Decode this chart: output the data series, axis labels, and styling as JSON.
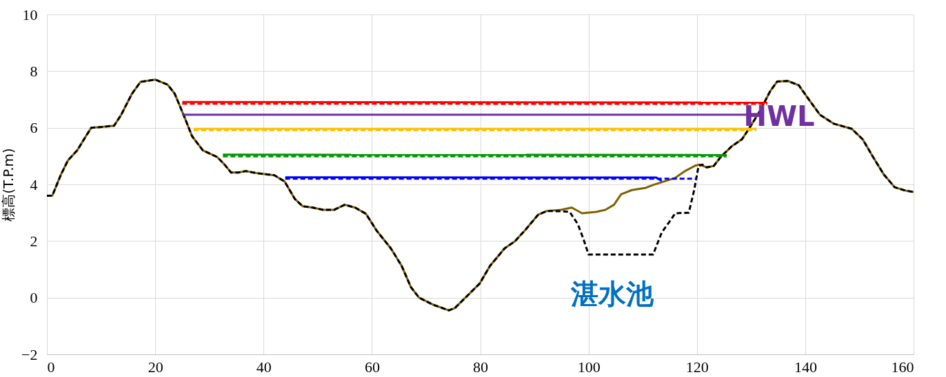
{
  "chart_data": {
    "type": "line",
    "ylabel": "標高(T.P.m)",
    "xlim": [
      0,
      160
    ],
    "ylim": [
      -2,
      10
    ],
    "xticks": [
      0,
      20,
      40,
      60,
      80,
      100,
      120,
      140,
      160
    ],
    "yticks": [
      -2,
      0,
      2,
      4,
      6,
      8,
      10
    ],
    "grid": true,
    "marker": "none",
    "series": [
      {
        "color": "#7f6000",
        "line_style": "solid",
        "x": [
          0,
          1,
          2.6,
          3.9,
          5.6,
          7.2,
          8.2,
          9.8,
          12.4,
          13.7,
          15.7,
          17.3,
          20,
          22.3,
          23.6,
          25.5,
          26.8,
          28.8,
          31.4,
          32.7,
          34,
          35.4,
          36.7,
          38.6,
          42,
          43.9,
          45.8,
          47.2,
          49.1,
          51,
          53,
          55,
          56.9,
          58.9,
          60.9,
          63.5,
          65.5,
          67.2,
          68.7,
          71.3,
          74.2,
          75.3,
          77.9,
          79.9,
          81.8,
          84.5,
          86.4,
          88.4,
          90.7,
          92.3,
          94.9,
          96.9,
          98.8,
          101.4,
          103.1,
          104.7,
          106,
          108,
          110.6,
          111.9,
          113.9,
          115.9,
          117.8,
          119.8,
          120.5,
          121.8,
          123.1,
          124.4,
          126.4,
          128.3,
          129.6,
          131.6,
          133.5,
          134.8,
          136.8,
          138.8,
          140.8,
          142.7,
          145.3,
          148.6,
          150.6,
          152.5,
          154.5,
          156.5,
          158.5,
          160
        ],
        "values": [
          3.6,
          3.6,
          4.35,
          4.85,
          5.2,
          5.7,
          6.0,
          6.02,
          6.07,
          6.45,
          7.2,
          7.62,
          7.7,
          7.52,
          7.2,
          6.33,
          5.7,
          5.2,
          4.97,
          4.72,
          4.42,
          4.42,
          4.47,
          4.4,
          4.32,
          4.1,
          3.48,
          3.23,
          3.18,
          3.1,
          3.1,
          3.28,
          3.18,
          2.96,
          2.36,
          1.74,
          1.12,
          0.37,
          0,
          -0.25,
          -0.45,
          -0.37,
          0.12,
          0.5,
          1.12,
          1.74,
          1.99,
          2.41,
          2.93,
          3.06,
          3.1,
          3.18,
          2.98,
          3.03,
          3.1,
          3.28,
          3.65,
          3.8,
          3.88,
          3.98,
          4.1,
          4.22,
          4.47,
          4.67,
          4.7,
          4.6,
          4.65,
          4.97,
          5.34,
          5.59,
          5.96,
          6.58,
          7.28,
          7.63,
          7.65,
          7.5,
          6.96,
          6.46,
          6.14,
          5.96,
          5.59,
          4.97,
          4.35,
          3.9,
          3.78,
          3.73
        ]
      },
      {
        "color": "#000000",
        "line_style": "dashed",
        "x": [
          0,
          1,
          2.6,
          3.9,
          5.6,
          7.2,
          8.2,
          9.8,
          12.4,
          13.7,
          15.7,
          17.3,
          20,
          22.3,
          23.6,
          25.5,
          26.8,
          28.8,
          31.4,
          32.7,
          34,
          35.4,
          36.7,
          38.6,
          42,
          43.9,
          45.8,
          47.2,
          49.1,
          51,
          53,
          55,
          56.9,
          58.9,
          60.9,
          63.5,
          65.5,
          67.2,
          68.7,
          71.3,
          74.2,
          75.3,
          77.9,
          79.9,
          81.8,
          84.5,
          86.4,
          88.4,
          90.7,
          92.3,
          94.9,
          96.5,
          98,
          99,
          100,
          104,
          108,
          111.9,
          113.5,
          115,
          116,
          118.5,
          119.5,
          120.3,
          121,
          121.8,
          123.1,
          124.4,
          126.4,
          128.3,
          129.6,
          131.6,
          133.5,
          134.8,
          136.8,
          138.8,
          140.8,
          142.7,
          145.3,
          148.6,
          150.6,
          152.5,
          154.5,
          156.5,
          158.5,
          160
        ],
        "values": [
          3.6,
          3.6,
          4.35,
          4.85,
          5.2,
          5.7,
          6.0,
          6.02,
          6.07,
          6.45,
          7.2,
          7.62,
          7.7,
          7.52,
          7.2,
          6.33,
          5.7,
          5.2,
          4.97,
          4.72,
          4.42,
          4.42,
          4.47,
          4.4,
          4.32,
          4.1,
          3.48,
          3.23,
          3.18,
          3.1,
          3.1,
          3.28,
          3.18,
          2.96,
          2.36,
          1.74,
          1.12,
          0.37,
          0,
          -0.25,
          -0.45,
          -0.37,
          0.12,
          0.5,
          1.12,
          1.74,
          1.99,
          2.41,
          2.93,
          3.06,
          3.05,
          3.03,
          2.6,
          2.1,
          1.52,
          1.52,
          1.52,
          1.52,
          2.3,
          2.7,
          2.98,
          3.0,
          3.8,
          4.65,
          4.7,
          4.6,
          4.65,
          4.97,
          5.34,
          5.59,
          5.96,
          6.58,
          7.28,
          7.63,
          7.65,
          7.5,
          6.96,
          6.46,
          6.14,
          5.96,
          5.59,
          4.97,
          4.35,
          3.9,
          3.78,
          3.73
        ]
      },
      {
        "color": "#ff0000",
        "line_style": "solid",
        "x": [
          25,
          133
        ],
        "values": [
          6.91,
          6.89
        ]
      },
      {
        "color": "#ff0000",
        "line_style": "dashed",
        "x": [
          25,
          133
        ],
        "values": [
          6.85,
          6.84
        ]
      },
      {
        "color": "#7030a0",
        "line_style": "solid",
        "x": [
          25,
          131.6
        ],
        "values": [
          6.46,
          6.46
        ]
      },
      {
        "color": "#ffc000",
        "line_style": "solid",
        "x": [
          27.1,
          131
        ],
        "values": [
          5.96,
          5.96
        ]
      },
      {
        "color": "#ffc000",
        "line_style": "dashed",
        "x": [
          27.1,
          131
        ],
        "values": [
          5.91,
          5.91
        ]
      },
      {
        "color": "#009900",
        "line_style": "solid",
        "x": [
          32.5,
          125.5
        ],
        "values": [
          5.05,
          5.04
        ]
      },
      {
        "color": "#009900",
        "line_style": "dashed",
        "x": [
          32.5,
          125.5
        ],
        "values": [
          4.99,
          4.99
        ]
      },
      {
        "color": "#0000ff",
        "line_style": "solid",
        "x": [
          44,
          112.5,
          113.5
        ],
        "values": [
          4.25,
          4.24,
          4.12
        ]
      },
      {
        "color": "#0000ff",
        "line_style": "dashed",
        "x": [
          44,
          120
        ],
        "values": [
          4.2,
          4.2
        ]
      }
    ],
    "annotations": [
      "HWL",
      "湛水池"
    ]
  }
}
